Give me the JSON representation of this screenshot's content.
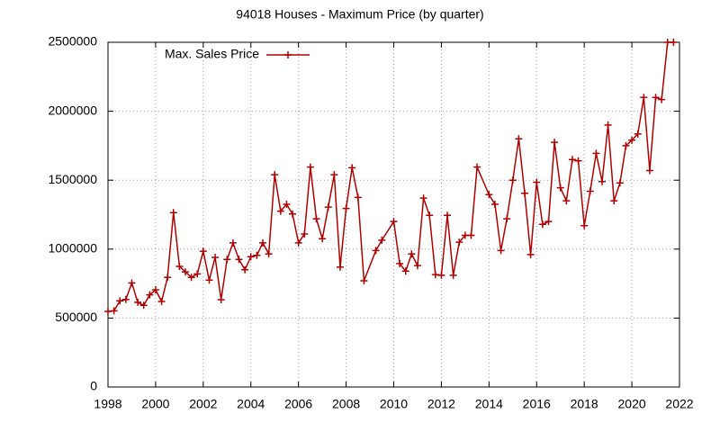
{
  "chart_data": {
    "type": "line",
    "title": "94018 Houses - Maximum Price (by quarter)",
    "xlim": [
      1998,
      2022
    ],
    "xticks": [
      1998,
      2000,
      2002,
      2004,
      2006,
      2008,
      2010,
      2012,
      2014,
      2016,
      2018,
      2020,
      2022
    ],
    "ylim": [
      0,
      2500000
    ],
    "yticks": [
      0,
      500000,
      1000000,
      1500000,
      2000000,
      2500000
    ],
    "grid": true,
    "legend": "top-left",
    "x": [
      1998.0,
      1998.25,
      1998.5,
      1998.75,
      1999.0,
      1999.25,
      1999.5,
      1999.75,
      2000.0,
      2000.25,
      2000.5,
      2000.75,
      2001.0,
      2001.25,
      2001.5,
      2001.75,
      2002.0,
      2002.25,
      2002.5,
      2002.75,
      2003.0,
      2003.25,
      2003.5,
      2003.75,
      2004.0,
      2004.25,
      2004.5,
      2004.75,
      2005.0,
      2005.25,
      2005.5,
      2005.75,
      2006.0,
      2006.25,
      2006.5,
      2006.75,
      2007.0,
      2007.25,
      2007.5,
      2007.75,
      2008.0,
      2008.25,
      2008.5,
      2008.75,
      2009.25,
      2009.5,
      2010.0,
      2010.25,
      2010.5,
      2010.75,
      2011.0,
      2011.25,
      2011.5,
      2011.75,
      2012.0,
      2012.25,
      2012.5,
      2012.75,
      2013.0,
      2013.25,
      2013.5,
      2014.0,
      2014.25,
      2014.5,
      2014.75,
      2015.0,
      2015.25,
      2015.5,
      2015.75,
      2016.0,
      2016.25,
      2016.5,
      2016.75,
      2017.0,
      2017.25,
      2017.5,
      2017.75,
      2018.0,
      2018.25,
      2018.5,
      2018.75,
      2019.0,
      2019.25,
      2019.5,
      2019.75,
      2020.0,
      2020.25,
      2020.5,
      2020.75,
      2021.0,
      2021.25,
      2021.5,
      2021.75
    ],
    "series": [
      {
        "name": "Max. Sales Price",
        "color": "#b00000",
        "values": [
          548000,
          552000,
          625000,
          635000,
          755000,
          614000,
          592000,
          668000,
          705000,
          620000,
          795000,
          1265000,
          875000,
          835000,
          795000,
          820000,
          985000,
          775000,
          940000,
          633000,
          925000,
          1045000,
          925000,
          850000,
          945000,
          955000,
          1045000,
          965000,
          1540000,
          1275000,
          1325000,
          1255000,
          1045000,
          1110000,
          1595000,
          1220000,
          1075000,
          1305000,
          1540000,
          870000,
          1295000,
          1590000,
          1375000,
          770000,
          990000,
          1065000,
          1200000,
          895000,
          840000,
          965000,
          880000,
          1370000,
          1245000,
          815000,
          810000,
          1245000,
          810000,
          1050000,
          1100000,
          1100000,
          1595000,
          1395000,
          1325000,
          990000,
          1220000,
          1500000,
          1800000,
          1405000,
          960000,
          1485000,
          1180000,
          1200000,
          1775000,
          1445000,
          1350000,
          1650000,
          1640000,
          1170000,
          1420000,
          1695000,
          1490000,
          1900000,
          1350000,
          1480000,
          1750000,
          1790000,
          1835000,
          2100000,
          1570000,
          2100000,
          2085000,
          2500000,
          2500000
        ]
      }
    ]
  }
}
